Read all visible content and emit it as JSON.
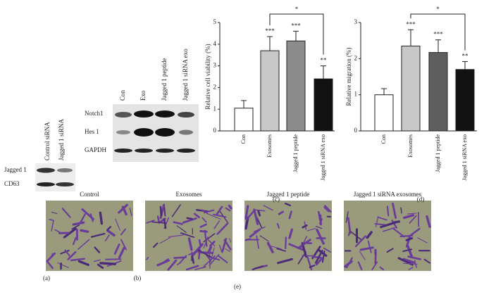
{
  "chart_data": [
    {
      "type": "bar",
      "ylabel": "Relative cell viability (%)",
      "categories": [
        "Con",
        "Exosomes",
        "Jagged 1 peptide",
        "Jagged 1 siRNA exo"
      ],
      "values": [
        1.05,
        3.7,
        4.15,
        2.4
      ],
      "errors": [
        0.35,
        0.65,
        0.45,
        0.6
      ],
      "colors": [
        "#ffffff",
        "#c8c8c8",
        "#8c8c8c",
        "#111111"
      ],
      "significance": [
        null,
        "***",
        "***",
        "**"
      ],
      "bracket": {
        "from": "Exosomes",
        "to": "Jagged 1 siRNA exo",
        "label": "*"
      },
      "ylim": [
        0,
        5
      ],
      "yticks": [
        0,
        1,
        2,
        3,
        4,
        5
      ],
      "grid": false,
      "panel": "(c)"
    },
    {
      "type": "bar",
      "ylabel": "Relative migration (%)",
      "categories": [
        "Con",
        "Exosomes",
        "Jagged 1 peptide",
        "Jagged 1 siRNA exo"
      ],
      "values": [
        1.0,
        2.35,
        2.17,
        1.7
      ],
      "errors": [
        0.17,
        0.45,
        0.35,
        0.22
      ],
      "colors": [
        "#ffffff",
        "#c8c8c8",
        "#5e5e5e",
        "#111111"
      ],
      "significance": [
        null,
        "***",
        "***",
        "**"
      ],
      "bracket": {
        "from": "Exosomes",
        "to": "Jagged 1 siRNA exo",
        "label": "*"
      },
      "ylim": [
        0,
        3
      ],
      "yticks": [
        0,
        1,
        2,
        3
      ],
      "grid": false,
      "panel": "(d)"
    }
  ],
  "panel_a": {
    "columns": [
      "Control siRNA",
      "Jagged 1 siRNA"
    ],
    "rows": [
      "Jagged 1",
      "CD63"
    ],
    "label": "(a)"
  },
  "panel_b": {
    "columns": [
      "Con",
      "Exo",
      "Jagged 1 peptide",
      "Jagged 1 siRNA exo"
    ],
    "rows": [
      "Notch1",
      "Hes 1",
      "GAPDH"
    ],
    "label": "(b)"
  },
  "panel_e": {
    "titles": [
      "Control",
      "Exosomes",
      "Jagged 1 peptide",
      "Jagged 1 siRNA exosomes"
    ],
    "label": "(e)"
  }
}
